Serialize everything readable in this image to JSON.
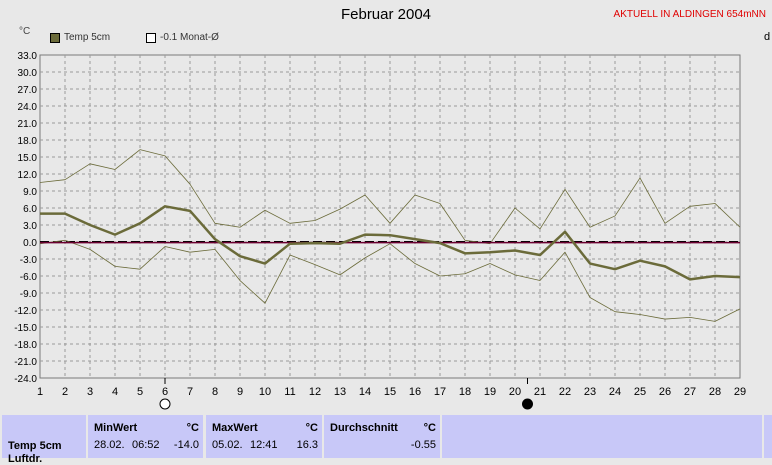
{
  "header": {
    "title": "Februar 2004",
    "station": "AKTUELL IN ALDINGEN 654mNN",
    "unit": "°C",
    "right_edge": "d"
  },
  "legend": [
    {
      "name": "Temp 5cm",
      "color": "#6b6b3a"
    },
    {
      "name": "-0.1 Monat-Ø",
      "color": "#800040"
    }
  ],
  "summary": {
    "row_label": "Temp 5cm",
    "row_label_2": "Luftdr.",
    "min": {
      "label": "MinWert",
      "unit": "°C",
      "date": "28.02.",
      "time": "06:52",
      "value": "-14.0"
    },
    "max": {
      "label": "MaxWert",
      "unit": "°C",
      "date": "05.02.",
      "time": "12:41",
      "value": "16.3"
    },
    "avg": {
      "label": "Durchschnitt",
      "unit": "°C",
      "value": "-0.55"
    }
  },
  "chart_data": {
    "type": "line",
    "title": "Februar 2004",
    "ylabel": "°C",
    "x": [
      1,
      2,
      3,
      4,
      5,
      6,
      7,
      8,
      9,
      10,
      11,
      12,
      13,
      14,
      15,
      16,
      17,
      18,
      19,
      20,
      21,
      22,
      23,
      24,
      25,
      26,
      27,
      28,
      29
    ],
    "ylim": [
      -24,
      33
    ],
    "yticks": [
      "33.0",
      "30.0",
      "27.0",
      "24.0",
      "21.0",
      "18.0",
      "15.0",
      "12.0",
      "9.0",
      "6.0",
      "3.0",
      "0.0",
      "-3.0",
      "-6.0",
      "-9.0",
      "-12.0",
      "-15.0",
      "-18.0",
      "-21.0",
      "-24.0"
    ],
    "grid": true,
    "moon_markers": [
      {
        "day": 6,
        "phase": "full"
      },
      {
        "day": 20.5,
        "phase": "new"
      }
    ],
    "series": [
      {
        "name": "Temp 5cm",
        "values": [
          5.0,
          5.0,
          3.0,
          1.3,
          3.3,
          6.3,
          5.5,
          0.5,
          -2.5,
          -3.8,
          -0.3,
          -0.2,
          -0.3,
          1.3,
          1.2,
          0.5,
          -0.2,
          -2.0,
          -1.8,
          -1.5,
          -2.3,
          1.8,
          -3.8,
          -4.8,
          -3.3,
          -4.3,
          -6.6,
          -6.0,
          -6.2
        ]
      },
      {
        "name": "-0.1 Monat-Ø",
        "values": [
          -0.1,
          -0.1,
          -0.1,
          -0.1,
          -0.1,
          -0.1,
          -0.1,
          -0.1,
          -0.1,
          -0.1,
          -0.1,
          -0.1,
          -0.1,
          -0.1,
          -0.1,
          -0.1,
          -0.1,
          -0.1,
          -0.1,
          -0.1,
          -0.1,
          -0.1,
          -0.1,
          -0.1,
          -0.1,
          -0.1,
          -0.1,
          -0.1,
          -0.1
        ]
      },
      {
        "values": [
          10.5,
          11.0,
          13.8,
          12.8,
          16.3,
          15.2,
          10.2,
          3.3,
          2.6,
          5.6,
          3.3,
          3.8,
          5.8,
          8.3,
          3.3,
          8.3,
          6.8,
          0.3,
          -0.3,
          6.0,
          2.3,
          9.3,
          2.6,
          4.6,
          11.3,
          3.3,
          6.3,
          6.8,
          2.6
        ]
      },
      {
        "values": [
          -0.3,
          0.3,
          -1.3,
          -4.3,
          -4.8,
          -0.8,
          -1.8,
          -1.3,
          -6.8,
          -10.8,
          -2.3,
          -4.0,
          -5.8,
          -2.8,
          -0.3,
          -3.8,
          -6.0,
          -5.6,
          -3.8,
          -5.8,
          -6.8,
          -1.8,
          -9.8,
          -12.3,
          -12.8,
          -13.6,
          -13.3,
          -14.0,
          -11.8
        ]
      }
    ]
  }
}
